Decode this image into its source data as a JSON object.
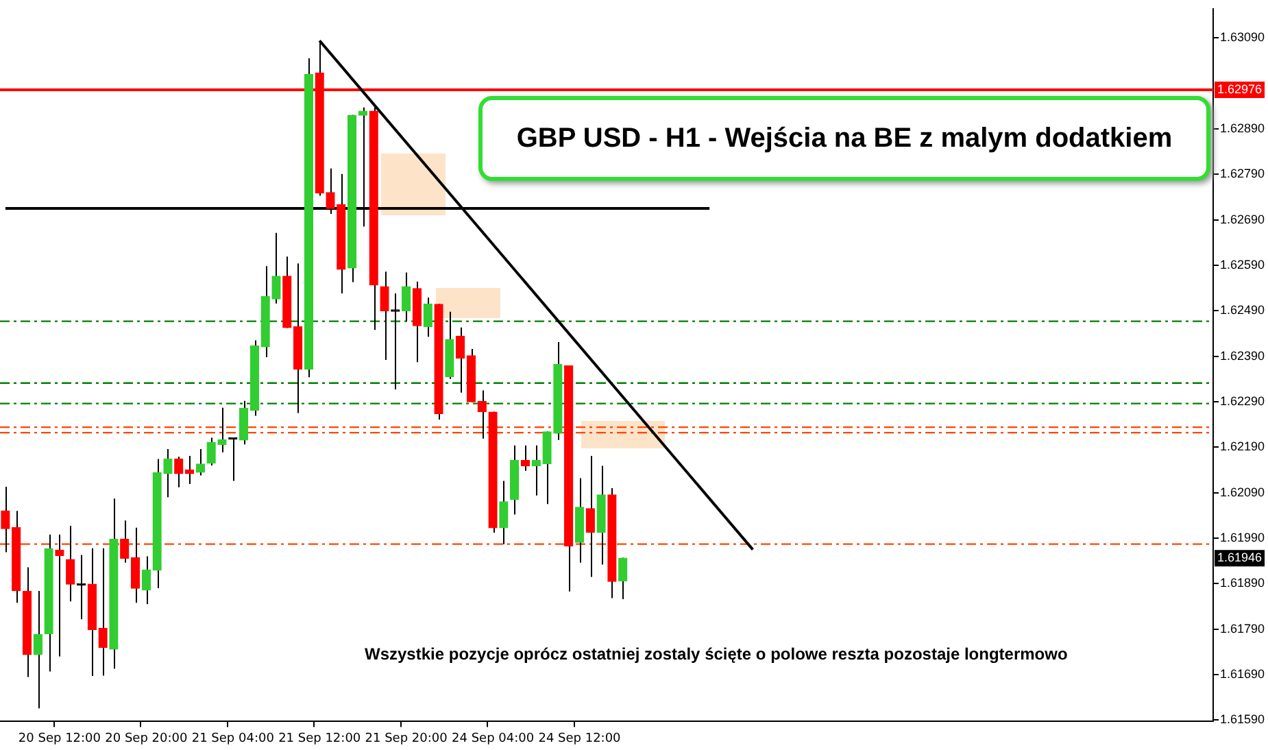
{
  "chart_data": {
    "type": "candlestick",
    "title": "GBP USD - H1 - Wejścia na BE z malym dodatkiem",
    "categories": [
      null,
      null,
      null,
      null,
      null,
      "20 Sep 12:00",
      null,
      null,
      null,
      null,
      null,
      null,
      null,
      "20 Sep 20:00",
      null,
      null,
      null,
      null,
      null,
      null,
      null,
      "21 Sep 04:00",
      null,
      null,
      null,
      null,
      null,
      null,
      null,
      "21 Sep 12:00",
      null,
      null,
      null,
      null,
      null,
      null,
      null,
      "21 Sep 20:00",
      null,
      null,
      null,
      null,
      null,
      null,
      null,
      "24 Sep 04:00",
      null,
      null,
      null,
      null,
      null,
      null,
      null,
      "24 Sep 12:00",
      null,
      null,
      null,
      null,
      null,
      null,
      null,
      null,
      null,
      null,
      null,
      null,
      null,
      null,
      null,
      null,
      null,
      null,
      null,
      null,
      null,
      null,
      null,
      null,
      null,
      null,
      null,
      null,
      null,
      null,
      null,
      null,
      null,
      null,
      null,
      null,
      null,
      null,
      null,
      null,
      null,
      null,
      null,
      null,
      null,
      null,
      null,
      null,
      null,
      null,
      null,
      null,
      null,
      null,
      null,
      null,
      null,
      null
    ],
    "ohlc": [
      [
        1.6205,
        1.62103,
        1.61959,
        1.62011
      ],
      [
        1.62013,
        1.6205,
        1.61848,
        1.61875
      ],
      [
        1.61873,
        1.61926,
        1.61685,
        1.61734
      ],
      [
        1.61734,
        1.61874,
        1.61616,
        1.61778
      ],
      [
        1.6178,
        1.61998,
        1.61697,
        1.61967
      ],
      [
        1.61964,
        1.61998,
        1.6173,
        1.61952
      ],
      [
        1.61943,
        1.62017,
        1.61851,
        1.61889
      ],
      [
        1.61887,
        1.61953,
        1.61812,
        1.61887
      ],
      [
        1.61889,
        1.61968,
        1.61687,
        1.61789
      ],
      [
        1.61792,
        1.61968,
        1.61688,
        1.6175
      ],
      [
        1.61746,
        1.62077,
        1.61703,
        1.61988
      ],
      [
        1.61988,
        1.62029,
        1.61936,
        1.61946
      ],
      [
        1.61947,
        1.62013,
        1.61848,
        1.6188
      ],
      [
        1.61876,
        1.6195,
        1.61845,
        1.6192
      ],
      [
        1.6192,
        1.62164,
        1.6188,
        1.62134
      ],
      [
        1.62132,
        1.62186,
        1.6208,
        1.62164
      ],
      [
        1.62164,
        1.62169,
        1.62102,
        1.62132
      ],
      [
        1.6214,
        1.62171,
        1.62109,
        1.62132
      ],
      [
        1.62135,
        1.62186,
        1.62128,
        1.62153
      ],
      [
        1.62155,
        1.62211,
        1.6215,
        1.62201
      ],
      [
        1.62196,
        1.62277,
        1.62179,
        1.62206
      ],
      [
        1.62208,
        1.62208,
        1.62116,
        1.62208
      ],
      [
        1.62206,
        1.62292,
        1.62196,
        1.62276
      ],
      [
        1.62271,
        1.62425,
        1.62259,
        1.62413
      ],
      [
        1.62411,
        1.62588,
        1.62388,
        1.62521
      ],
      [
        1.62516,
        1.62661,
        1.62506,
        1.62566
      ],
      [
        1.62566,
        1.62609,
        1.62452,
        1.62453
      ],
      [
        1.62455,
        1.62594,
        1.62265,
        1.62362
      ],
      [
        1.62362,
        1.63045,
        1.62344,
        1.6301
      ],
      [
        1.63013,
        1.63083,
        1.62743,
        1.62749
      ],
      [
        1.6275,
        1.62803,
        1.62703,
        1.62715
      ],
      [
        1.62723,
        1.62791,
        1.62528,
        1.62581
      ],
      [
        1.62584,
        1.62921,
        1.62553,
        1.6292
      ],
      [
        1.6292,
        1.62937,
        1.62675,
        1.62929
      ],
      [
        1.62929,
        1.62937,
        1.62448,
        1.62547
      ],
      [
        1.62543,
        1.62576,
        1.62382,
        1.6249
      ],
      [
        1.62489,
        1.62528,
        1.62317,
        1.62489
      ],
      [
        1.6249,
        1.62574,
        1.62468,
        1.62543
      ],
      [
        1.62539,
        1.62554,
        1.62377,
        1.62457
      ],
      [
        1.62455,
        1.62519,
        1.62433,
        1.62505
      ],
      [
        1.62504,
        1.62505,
        1.62251,
        1.62264
      ],
      [
        1.62345,
        1.62488,
        1.6234,
        1.62427
      ],
      [
        1.62434,
        1.62453,
        1.6231,
        1.62386
      ],
      [
        1.62391,
        1.62406,
        1.62289,
        1.6229
      ],
      [
        1.62291,
        1.62315,
        1.62209,
        1.62268
      ],
      [
        1.62267,
        1.62268,
        1.62002,
        1.62013
      ],
      [
        1.62013,
        1.62116,
        1.61977,
        1.6207
      ],
      [
        1.62075,
        1.62194,
        1.62042,
        1.62161
      ],
      [
        1.62161,
        1.62194,
        1.62138,
        1.62149
      ],
      [
        1.62149,
        1.62194,
        1.62084,
        1.62161
      ],
      [
        1.62154,
        1.62225,
        1.62065,
        1.62224
      ],
      [
        1.62221,
        1.62421,
        1.62206,
        1.62372
      ],
      [
        1.62369,
        1.6237,
        1.61873,
        1.61973
      ],
      [
        1.61981,
        1.62122,
        1.61936,
        1.62058
      ],
      [
        1.62055,
        1.62171,
        1.61905,
        1.62003
      ],
      [
        1.62003,
        1.62149,
        1.61932,
        1.62085
      ],
      [
        1.62085,
        1.621,
        1.61858,
        1.61895
      ],
      [
        1.61896,
        1.61947,
        1.61856,
        1.61946
      ],
      null,
      null,
      null,
      null,
      null,
      null,
      null,
      null,
      null,
      null,
      null,
      null,
      null,
      null,
      null,
      null,
      null,
      null,
      null,
      null,
      null,
      null,
      null,
      null,
      null,
      null,
      null,
      null,
      null,
      null,
      null,
      null,
      null,
      null,
      null,
      null,
      null,
      null,
      null,
      null,
      null,
      null,
      null,
      null,
      null,
      null,
      null,
      null,
      null,
      null,
      null,
      null,
      null,
      null
    ],
    "colors": [
      "#ff0000",
      "#ff0000",
      "#ff0000",
      "#32cd32",
      "#32cd32",
      "#ff0000",
      "#ff0000",
      "#000000",
      "#ff0000",
      "#ff0000",
      "#32cd32",
      "#ff0000",
      "#ff0000",
      "#32cd32",
      "#32cd32",
      "#32cd32",
      "#ff0000",
      "#ff0000",
      "#32cd32",
      "#32cd32",
      "#32cd32",
      "#000000",
      "#32cd32",
      "#32cd32",
      "#32cd32",
      "#32cd32",
      "#ff0000",
      "#ff0000",
      "#32cd32",
      "#ff0000",
      "#ff0000",
      "#ff0000",
      "#32cd32",
      "#32cd32",
      "#ff0000",
      "#ff0000",
      "#000000",
      "#32cd32",
      "#ff0000",
      "#32cd32",
      "#ff0000",
      "#32cd32",
      "#ff0000",
      "#ff0000",
      "#ff0000",
      "#ff0000",
      "#32cd32",
      "#32cd32",
      "#ff0000",
      "#32cd32",
      "#32cd32",
      "#32cd32",
      "#ff0000",
      "#32cd32",
      "#ff0000",
      "#32cd32",
      "#ff0000",
      "#32cd32",
      null,
      null,
      null,
      null,
      null,
      null,
      null,
      null,
      null,
      null,
      null,
      null,
      null,
      null,
      null,
      null,
      null,
      null,
      null,
      null,
      null,
      null,
      null,
      null,
      null,
      null,
      null,
      null,
      null,
      null,
      null,
      null,
      null,
      null,
      null,
      null,
      null,
      null,
      null,
      null,
      null,
      null,
      null,
      null,
      null,
      null,
      null,
      null,
      null,
      null,
      null,
      null,
      null,
      null
    ],
    "series": [
      {
        "type": "line",
        "color": "#000000",
        "values": [
          1.62715,
          1.62715,
          1.62715,
          1.62715,
          1.62715,
          1.62715,
          1.62715,
          1.62715,
          1.62715,
          1.62715,
          1.62715,
          1.62715,
          1.62715,
          1.62715,
          1.62715,
          1.62715,
          1.62715,
          1.62715,
          1.62715,
          1.62715,
          1.62715,
          1.62715,
          1.62715,
          1.62715,
          1.62715,
          1.62715,
          1.62715,
          1.62715,
          1.62715,
          1.62715,
          1.62715,
          1.62715,
          1.62715,
          1.62715,
          1.62715,
          1.62715,
          1.62715,
          1.62715,
          1.62715,
          1.62715,
          1.62715,
          1.62715,
          1.62715,
          1.62715,
          1.62715,
          1.62715,
          1.62715,
          1.62715,
          1.62715,
          1.62715,
          1.62715,
          1.62715,
          1.62715,
          1.62715,
          1.62715,
          1.62715,
          1.62715,
          1.62715,
          1.62715,
          1.62715,
          1.62715,
          1.62715,
          1.62715,
          1.62715,
          1.62715,
          1.62715,
          null,
          null,
          null,
          null,
          null,
          null,
          null,
          null,
          null,
          null,
          null,
          null,
          null,
          null,
          null,
          null,
          null,
          null,
          null,
          null,
          null,
          null,
          null,
          null,
          null,
          null,
          null,
          null,
          null,
          null,
          null,
          null,
          null,
          null,
          null,
          null,
          null,
          null,
          null,
          null,
          null,
          null,
          null,
          null,
          null,
          null
        ]
      },
      {
        "type": "line",
        "color": "#000000",
        "values": [
          null,
          null,
          null,
          null,
          null,
          null,
          null,
          null,
          null,
          null,
          null,
          null,
          null,
          null,
          null,
          null,
          null,
          null,
          null,
          null,
          null,
          null,
          null,
          null,
          null,
          null,
          null,
          null,
          null,
          1.63084,
          null,
          null,
          null,
          null,
          null,
          null,
          null,
          null,
          null,
          null,
          null,
          null,
          null,
          null,
          null,
          null,
          null,
          null,
          null,
          null,
          null,
          null,
          null,
          null,
          null,
          null,
          null,
          null,
          null,
          null,
          null,
          null,
          null,
          null,
          null,
          null,
          null,
          null,
          null,
          1.61965,
          null,
          null,
          null,
          null,
          null,
          null,
          null,
          null,
          null,
          null,
          null,
          null,
          null,
          null,
          null,
          null,
          null,
          null,
          null,
          null,
          null,
          null,
          null,
          null,
          null,
          null,
          null,
          null,
          null,
          null,
          null,
          null,
          null,
          null,
          null,
          null,
          null,
          null,
          null,
          null,
          null,
          null
        ]
      }
    ],
    "ref_lines": [
      {
        "axis": "y",
        "value": 1.62976,
        "label": "1.62976",
        "color": "#ff0000",
        "line_style": "solid"
      },
      {
        "axis": "y",
        "value": 1.62467,
        "color": "#008000",
        "line_style": "dashed"
      },
      {
        "axis": "y",
        "value": 1.62331,
        "color": "#008000",
        "line_style": "dashed"
      },
      {
        "axis": "y",
        "value": 1.62286,
        "color": "#008000",
        "line_style": "dashed"
      },
      {
        "axis": "y",
        "value": 1.62234,
        "color": "#ff4500",
        "line_style": "dashed"
      },
      {
        "axis": "y",
        "value": 1.62222,
        "color": "#ff4500",
        "line_style": "dashed"
      },
      {
        "axis": "y",
        "value": 1.61977,
        "color": "#ff4500",
        "line_style": "dashed"
      }
    ],
    "annotations": [
      "Wszystkie pozycje oprócz ostatniej zostaly ścięte o polowe reszta pozostaje longtermowo",
      "1.61946"
    ],
    "ylim": [
      1.61587,
      1.63154
    ],
    "yticks": [
      {
        "value": 1.6159,
        "label": "1.61590"
      },
      {
        "value": 1.6169,
        "label": "1.61690"
      },
      {
        "value": 1.6179,
        "label": "1.61790"
      },
      {
        "value": 1.6189,
        "label": "1.61890"
      },
      {
        "value": 1.6199,
        "label": "1.61990"
      },
      {
        "value": 1.6209,
        "label": "1.62090"
      },
      {
        "value": 1.6219,
        "label": "1.62190"
      },
      {
        "value": 1.6229,
        "label": "1.62290"
      },
      {
        "value": 1.6239,
        "label": "1.62390"
      },
      {
        "value": 1.6249,
        "label": "1.62490"
      },
      {
        "value": 1.6259,
        "label": "1.62590"
      },
      {
        "value": 1.6269,
        "label": "1.62690"
      },
      {
        "value": 1.6279,
        "label": "1.62790"
      },
      {
        "value": 1.6289,
        "label": "1.62890"
      },
      {
        "value": 1.6309,
        "label": "1.63090"
      }
    ],
    "grid": false,
    "legend": false
  }
}
